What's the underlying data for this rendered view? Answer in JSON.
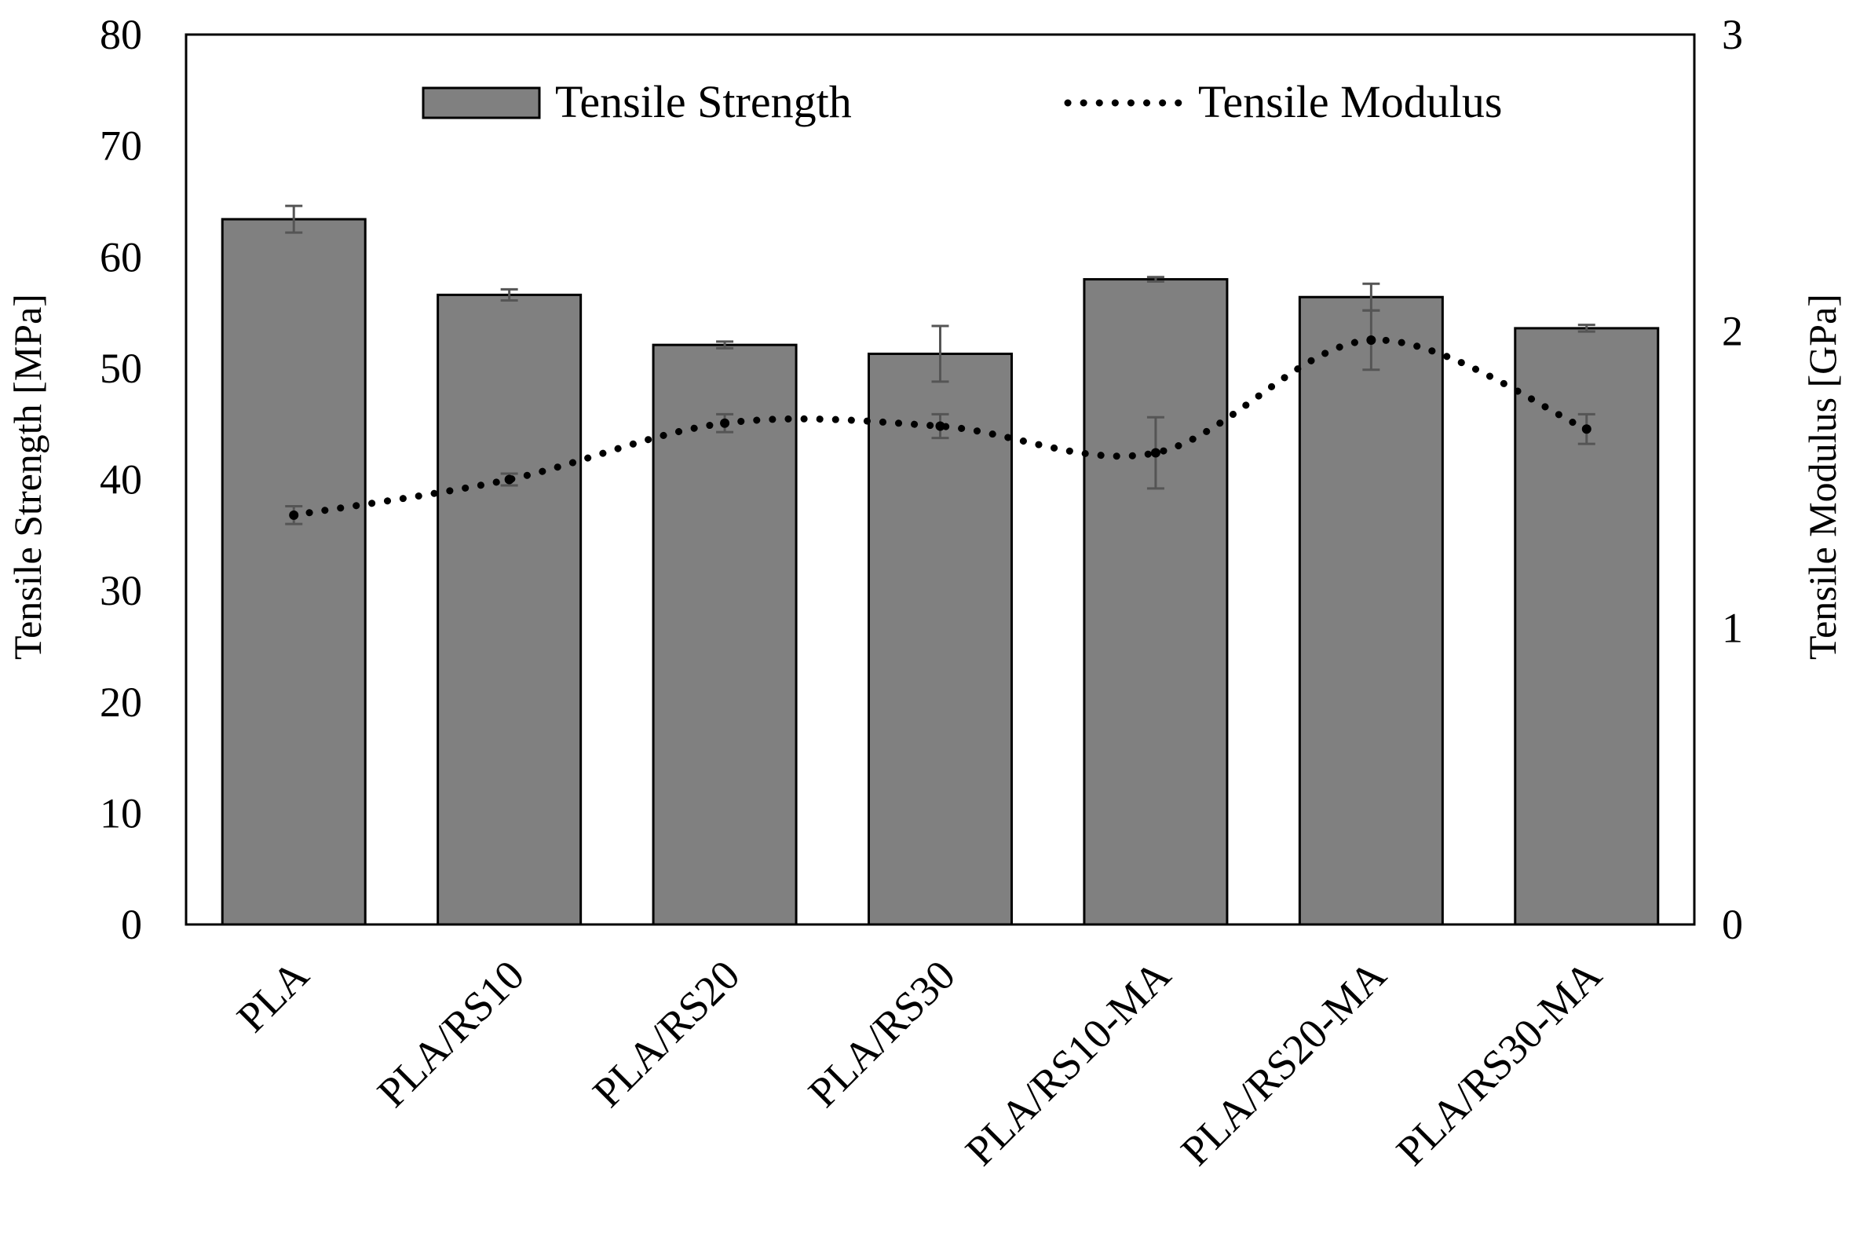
{
  "chart_data": {
    "type": "bar",
    "title": "",
    "categories": [
      "PLA",
      "PLA/RS10",
      "PLA/RS20",
      "PLA/RS30",
      "PLA/RS10-MA",
      "PLA/RS20-MA",
      "PLA/RS30-MA"
    ],
    "series": [
      {
        "name": "Tensile Strength",
        "type": "bar",
        "axis": "left",
        "values": [
          63.4,
          56.6,
          52.1,
          51.3,
          58.0,
          56.4,
          53.6
        ],
        "errors": [
          1.2,
          0.5,
          0.3,
          2.5,
          0.2,
          1.2,
          0.3
        ]
      },
      {
        "name": "Tensile Modulus",
        "type": "line",
        "style": "dotted",
        "axis": "right",
        "values": [
          1.38,
          1.5,
          1.69,
          1.68,
          1.59,
          1.97,
          1.67
        ],
        "errors": [
          0.03,
          0.02,
          0.03,
          0.04,
          0.12,
          0.1,
          0.05
        ]
      }
    ],
    "xlabel": "",
    "ylabel": "Tensile Strength [MPa]",
    "y2label": "Tensile Modulus [GPa]",
    "ylim": [
      0,
      80
    ],
    "y2lim": [
      0,
      3
    ],
    "yticks": [
      "0",
      "10",
      "20",
      "30",
      "40",
      "50",
      "60",
      "70",
      "80"
    ],
    "y2ticks": [
      "0",
      "1",
      "2",
      "3"
    ],
    "grid": false,
    "legend": {
      "position": "top-center",
      "entries": [
        "Tensile Strength",
        "Tensile Modulus"
      ]
    },
    "colors": {
      "bar_fill": "#808080",
      "bar_edge": "#000000",
      "error_bar": "#555555",
      "line": "#000000",
      "axis": "#000000"
    }
  }
}
